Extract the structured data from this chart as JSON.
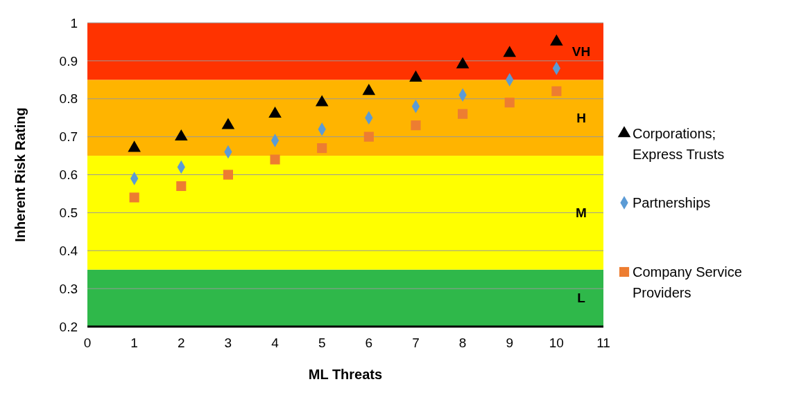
{
  "chart_data": {
    "type": "scatter",
    "xlabel": "ML Threats",
    "ylabel": "Inherent Risk Rating",
    "x": [
      1,
      2,
      3,
      4,
      5,
      6,
      7,
      8,
      9,
      10
    ],
    "series": [
      {
        "name": "Corporations; Express Trusts",
        "color": "#000000",
        "marker": "triangle",
        "values": [
          0.67,
          0.7,
          0.73,
          0.76,
          0.79,
          0.82,
          0.855,
          0.89,
          0.92,
          0.95
        ]
      },
      {
        "name": "Partnerships",
        "color": "#5b9bd5",
        "marker": "diamond",
        "values": [
          0.59,
          0.62,
          0.66,
          0.69,
          0.72,
          0.75,
          0.78,
          0.81,
          0.85,
          0.88
        ]
      },
      {
        "name": "Company Service Providers",
        "color": "#ed7d31",
        "marker": "square",
        "values": [
          0.54,
          0.57,
          0.6,
          0.64,
          0.67,
          0.7,
          0.73,
          0.76,
          0.79,
          0.82
        ]
      }
    ],
    "xlim": [
      0,
      11
    ],
    "xticks": [
      0,
      1,
      2,
      3,
      4,
      5,
      6,
      7,
      8,
      9,
      10,
      11
    ],
    "ylim": [
      0.2,
      1
    ],
    "yticks": [
      0.2,
      0.3,
      0.4,
      0.5,
      0.6,
      0.7,
      0.8,
      0.9,
      1
    ],
    "grid": "y",
    "legend": "right",
    "bands": [
      {
        "axis": "y",
        "from": 0.2,
        "to": 0.35,
        "label": "L",
        "color": "#2fb84a"
      },
      {
        "axis": "y",
        "from": 0.35,
        "to": 0.65,
        "label": "M",
        "color": "#ffff00"
      },
      {
        "axis": "y",
        "from": 0.65,
        "to": 0.85,
        "label": "H",
        "color": "#ffb400"
      },
      {
        "axis": "y",
        "from": 0.85,
        "to": 1,
        "label": "VH",
        "color": "#ff3300"
      }
    ]
  }
}
